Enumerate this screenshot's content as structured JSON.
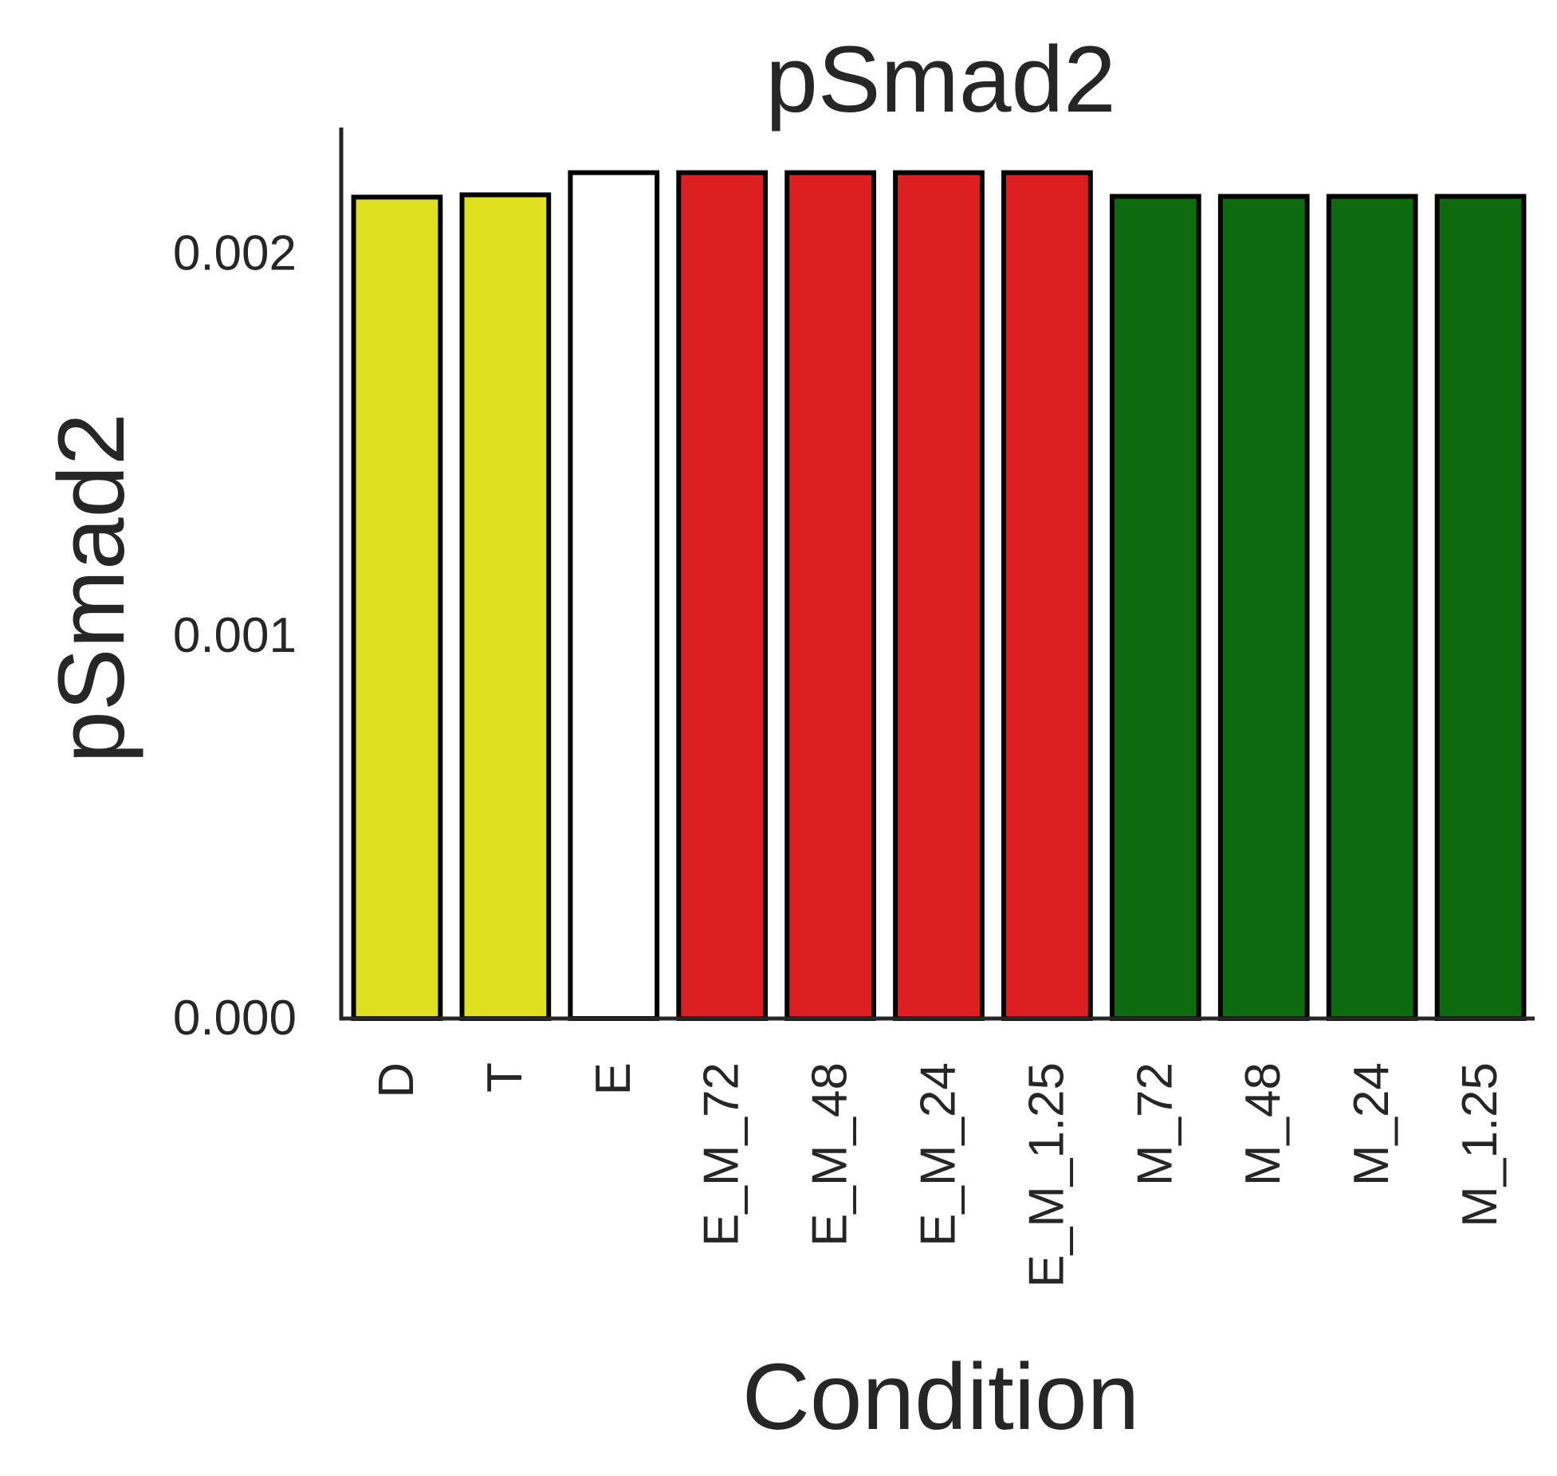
{
  "chart_data": {
    "type": "bar",
    "title": "pSmad2",
    "xlabel": "Condition",
    "ylabel": "pSmad2",
    "categories": [
      "D",
      "T",
      "E",
      "E_M_72",
      "E_M_48",
      "E_M_24",
      "E_M_1.25",
      "M_72",
      "M_48",
      "M_24",
      "M_1.25"
    ],
    "values": [
      0.002148,
      0.002154,
      0.002212,
      0.002212,
      0.002212,
      0.002212,
      0.002212,
      0.00215,
      0.00215,
      0.00215,
      0.00215
    ],
    "colors": [
      "#dfe01f",
      "#dfe01f",
      "#ffffff",
      "#de1f21",
      "#de1f21",
      "#de1f21",
      "#de1f21",
      "#0e6a0f",
      "#0e6a0f",
      "#0e6a0f",
      "#0e6a0f"
    ],
    "bar_edge_color": "#000000",
    "yticks": [
      0.0,
      0.001,
      0.002
    ],
    "ytick_labels": [
      "0.000",
      "0.001",
      "0.002"
    ],
    "ylim": [
      0,
      0.00233
    ],
    "grid": false,
    "legend": "none",
    "axis_color": "#262626"
  }
}
